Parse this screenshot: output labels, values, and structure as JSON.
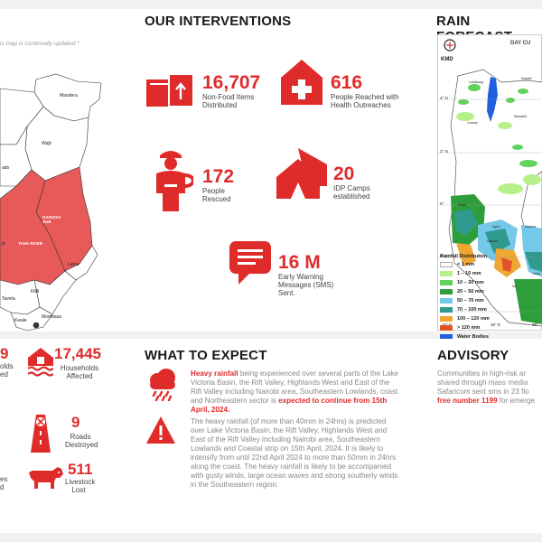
{
  "map_note": "is map is continually updated *",
  "map_labels": {
    "mandera": "Mandera",
    "wajir": "Wajir",
    "garissa": "GARISSA SUB",
    "tana_river": "TANA RIVER",
    "lamu": "Lamu",
    "kilifi": "Kilifi",
    "mombasa": "Mombasa",
    "kwale": "Kwale",
    "taveta": "Taveta",
    "ado": "ado",
    "lo": "lo"
  },
  "interventions": {
    "title": "OUR INTERVENTIONS",
    "items": [
      {
        "value": "16,707",
        "label": "Non-Food Items Distributed",
        "icon": "boxes-icon"
      },
      {
        "value": "616",
        "label": "People Reached with Health Outreaches",
        "icon": "health-house-icon"
      },
      {
        "value": "172",
        "label": "People Rescued",
        "icon": "rescuer-icon"
      },
      {
        "value": "20",
        "label": "IDP Camps established",
        "icon": "tent-icon"
      },
      {
        "value": "16 M",
        "label": "Early Warning Messages (SMS) Sent.",
        "icon": "sms-icon"
      }
    ]
  },
  "impact": {
    "items": [
      {
        "value": "9",
        "label": "olds"
      },
      {
        "value": "17,445",
        "label": "Households Affected",
        "icon": "flooded-house-icon"
      },
      {
        "value": "9",
        "label": "Roads Destroyed",
        "icon": "road-closed-icon"
      },
      {
        "value": "511",
        "label": "Livestock Lost",
        "icon": "cow-icon"
      }
    ],
    "left_fragments": [
      "ed",
      "es",
      "d"
    ]
  },
  "expect": {
    "title": "WHAT TO EXPECT",
    "p1_lead": "Heavy rainfall",
    "p1_body": " being experienced over several parts of the Lake Victoria Basin, the Rift Valley, Highlands West and East of the Rift Valley including Nairobi area, Southeastern Lowlands, coast and Northeastern sector is ",
    "p1_tail": "expected to continue from 15th April, 2024.",
    "p2": "The heavy rainfall (of more than 40mm in 24hrs) is predicted over Lake Victoria Basin, the Rift Valley, Highlands West and East of the Rift Valley including Nairobi area, Southeastern Lowlands and Coastal strip on 15th April, 2024. It is likely to intensify from until 22nd April 2024 to more than 50mm in 24hrs along the coast. The heavy rainfall is likely to be accompanied with gusty winds, large ocean waves and strong southerly winds in the Southeastern region."
  },
  "forecast": {
    "title": "RAIN FORECAST",
    "kmd": "KMD",
    "map_title_fragment": "DAY CU",
    "lat_labels": [
      "4° N",
      "2° N",
      "0°",
      "2° S",
      "4° S"
    ],
    "lon_labels": [
      "34° E",
      "36° E",
      "38°"
    ],
    "town_labels": [
      "Lokitaung",
      "Lodwar",
      "Marsabit",
      "Moyale",
      "Kitale",
      "Nyeri",
      "Nairobi",
      "Garissa",
      "Lamu",
      "Voi"
    ],
    "legend_title": "Rainfall Distribution",
    "legend": [
      {
        "label": "< 1 mm",
        "color": "#ffffff"
      },
      {
        "label": "1 – 10 mm",
        "color": "#b6f08a"
      },
      {
        "label": "10 – 20 mm",
        "color": "#5fd35c"
      },
      {
        "label": "20 – 50 mm",
        "color": "#2e9e3a"
      },
      {
        "label": "50 – 70 mm",
        "color": "#74c8e8"
      },
      {
        "label": "70 – 100 mm",
        "color": "#2f9a8e"
      },
      {
        "label": "100 – 120 mm",
        "color": "#f0a632"
      },
      {
        "label": "> 120 mm",
        "color": "#e0532a"
      },
      {
        "label": "Water Bodies",
        "color": "#1f5fe0"
      }
    ]
  },
  "advisory": {
    "title": "ADVISORY",
    "line1": "Communities in high-risk ar",
    "line2": "shared through mass media",
    "line3": "Safaricom sent sms in 23 flo",
    "line4_lead": "free number 1199",
    "line4_tail": " for emerge"
  },
  "colors": {
    "accent": "#e02b2b",
    "region_fill": "#e85a5a"
  }
}
